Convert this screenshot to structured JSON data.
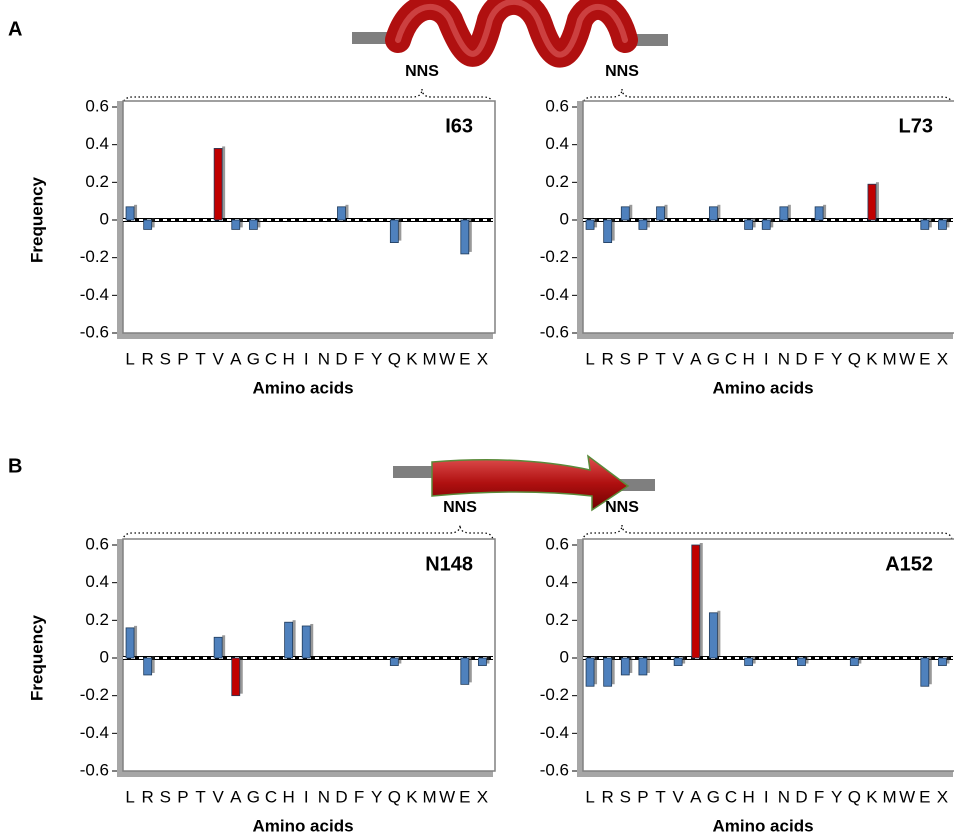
{
  "panel_labels": [
    "A",
    "B"
  ],
  "chart_data": [
    {
      "type": "bar",
      "title": "I63",
      "annotation": "NNS",
      "ylabel": "Frequency",
      "xlabel": "Amino acids",
      "categories": [
        "L",
        "R",
        "S",
        "P",
        "T",
        "V",
        "A",
        "G",
        "C",
        "H",
        "I",
        "N",
        "D",
        "F",
        "Y",
        "Q",
        "K",
        "M",
        "W",
        "E",
        "X"
      ],
      "values": [
        0.07,
        -0.05,
        0,
        0,
        0,
        0.38,
        -0.05,
        -0.05,
        0,
        0,
        0,
        0,
        0.07,
        0,
        0,
        -0.12,
        0,
        0,
        0,
        -0.18,
        0
      ],
      "colors": [
        "#4f81bd",
        "#4f81bd",
        "#4f81bd",
        "#4f81bd",
        "#4f81bd",
        "#c00000",
        "#4f81bd",
        "#4f81bd",
        "#4f81bd",
        "#4f81bd",
        "#4f81bd",
        "#4f81bd",
        "#4f81bd",
        "#4f81bd",
        "#4f81bd",
        "#4f81bd",
        "#4f81bd",
        "#4f81bd",
        "#4f81bd",
        "#4f81bd",
        "#4f81bd"
      ],
      "ylim": [
        -0.6,
        0.6
      ],
      "yticks": [
        -0.6,
        -0.4,
        -0.2,
        0,
        0.2,
        0.4,
        0.6
      ]
    },
    {
      "type": "bar",
      "title": "L73",
      "annotation": "NNS",
      "xlabel": "Amino acids",
      "categories": [
        "L",
        "R",
        "S",
        "P",
        "T",
        "V",
        "A",
        "G",
        "C",
        "H",
        "I",
        "N",
        "D",
        "F",
        "Y",
        "Q",
        "K",
        "M",
        "W",
        "E",
        "X"
      ],
      "values": [
        -0.05,
        -0.12,
        0.07,
        -0.05,
        0.07,
        0,
        0,
        0.07,
        0,
        -0.05,
        -0.05,
        0.07,
        0,
        0.07,
        0,
        0,
        0.19,
        0,
        0,
        -0.05,
        -0.05
      ],
      "colors": [
        "#4f81bd",
        "#4f81bd",
        "#4f81bd",
        "#4f81bd",
        "#4f81bd",
        "#4f81bd",
        "#4f81bd",
        "#4f81bd",
        "#4f81bd",
        "#4f81bd",
        "#4f81bd",
        "#4f81bd",
        "#4f81bd",
        "#4f81bd",
        "#4f81bd",
        "#4f81bd",
        "#c00000",
        "#4f81bd",
        "#4f81bd",
        "#4f81bd",
        "#4f81bd"
      ],
      "ylim": [
        -0.6,
        0.6
      ],
      "yticks": [
        -0.6,
        -0.4,
        -0.2,
        0,
        0.2,
        0.4,
        0.6
      ]
    },
    {
      "type": "bar",
      "title": "N148",
      "annotation": "NNS",
      "ylabel": "Frequency",
      "xlabel": "Amino acids",
      "categories": [
        "L",
        "R",
        "S",
        "P",
        "T",
        "V",
        "A",
        "G",
        "C",
        "H",
        "I",
        "N",
        "D",
        "F",
        "Y",
        "Q",
        "K",
        "M",
        "W",
        "E",
        "X"
      ],
      "values": [
        0.16,
        -0.09,
        0,
        0,
        0,
        0.11,
        -0.2,
        0,
        0,
        0.19,
        0.17,
        0,
        0,
        0,
        0,
        -0.04,
        0,
        0,
        0,
        -0.14,
        -0.04
      ],
      "colors": [
        "#4f81bd",
        "#4f81bd",
        "#4f81bd",
        "#4f81bd",
        "#4f81bd",
        "#4f81bd",
        "#c00000",
        "#4f81bd",
        "#4f81bd",
        "#4f81bd",
        "#4f81bd",
        "#4f81bd",
        "#4f81bd",
        "#4f81bd",
        "#4f81bd",
        "#4f81bd",
        "#4f81bd",
        "#4f81bd",
        "#4f81bd",
        "#4f81bd",
        "#4f81bd"
      ],
      "ylim": [
        -0.6,
        0.6
      ],
      "yticks": [
        -0.6,
        -0.4,
        -0.2,
        0,
        0.2,
        0.4,
        0.6
      ]
    },
    {
      "type": "bar",
      "title": "A152",
      "annotation": "NNS",
      "xlabel": "Amino acids",
      "categories": [
        "L",
        "R",
        "S",
        "P",
        "T",
        "V",
        "A",
        "G",
        "C",
        "H",
        "I",
        "N",
        "D",
        "F",
        "Y",
        "Q",
        "K",
        "M",
        "W",
        "E",
        "X"
      ],
      "values": [
        -0.15,
        -0.15,
        -0.09,
        -0.09,
        0,
        -0.04,
        0.6,
        0.24,
        0,
        -0.04,
        0,
        0,
        -0.04,
        0,
        0,
        -0.04,
        0,
        0,
        0,
        -0.15,
        -0.04
      ],
      "colors": [
        "#4f81bd",
        "#4f81bd",
        "#4f81bd",
        "#4f81bd",
        "#4f81bd",
        "#4f81bd",
        "#c00000",
        "#4f81bd",
        "#4f81bd",
        "#4f81bd",
        "#4f81bd",
        "#4f81bd",
        "#4f81bd",
        "#4f81bd",
        "#4f81bd",
        "#4f81bd",
        "#4f81bd",
        "#4f81bd",
        "#4f81bd",
        "#4f81bd",
        "#4f81bd"
      ],
      "ylim": [
        -0.6,
        0.6
      ],
      "yticks": [
        -0.6,
        -0.4,
        -0.2,
        0,
        0.2,
        0.4,
        0.6
      ]
    }
  ]
}
